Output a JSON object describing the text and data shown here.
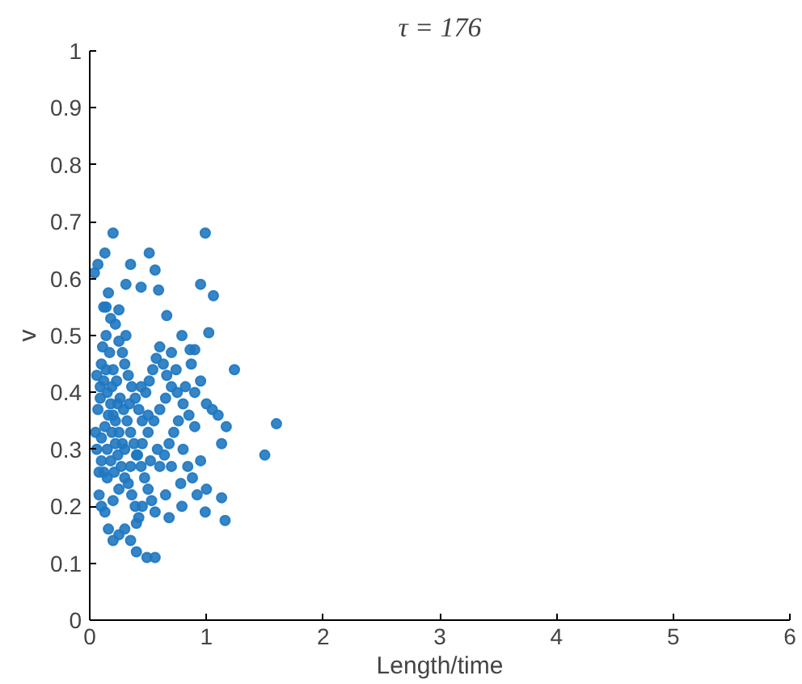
{
  "chart_data": {
    "type": "scatter",
    "title": "τ = 176",
    "xlabel": "Length/time",
    "ylabel": "v",
    "xlim": [
      0,
      6
    ],
    "ylim": [
      0,
      1
    ],
    "xticks": [
      0,
      1,
      2,
      3,
      4,
      5,
      6
    ],
    "yticks": [
      0,
      0.1,
      0.2,
      0.3,
      0.4,
      0.5,
      0.6,
      0.7,
      0.8,
      0.9,
      1
    ],
    "grid": false,
    "marker": "circle",
    "series": [
      {
        "color": "#1f78c1",
        "x": [
          0.2,
          0.99,
          0.13,
          0.51,
          0.04,
          0.07,
          0.35,
          0.56,
          0.95,
          0.31,
          1.06,
          0.16,
          0.44,
          0.59,
          0.14,
          0.25,
          0.66,
          1.02,
          0.79,
          1.24,
          0.9,
          0.86,
          1.17,
          1.6,
          1.5,
          1.13,
          1.13,
          1.16,
          1.0,
          0.99,
          0.79,
          0.68,
          0.49,
          0.56,
          0.4,
          0.16,
          0.1,
          0.12,
          0.15,
          0.18,
          0.2,
          0.22,
          0.25,
          0.28,
          0.3,
          0.1,
          0.12,
          0.15,
          0.08,
          0.1,
          0.13,
          0.2,
          0.25,
          0.3,
          0.35,
          0.4,
          0.45,
          0.5,
          0.55,
          0.6,
          0.65,
          0.7,
          0.75,
          0.8,
          0.85,
          0.9,
          0.95,
          1.0,
          0.05,
          0.07,
          0.09,
          0.11,
          0.14,
          0.17,
          0.2,
          0.23,
          0.26,
          0.29,
          0.32,
          0.35,
          0.38,
          0.41,
          0.44,
          0.47,
          0.5,
          0.53,
          0.56,
          0.6,
          0.64,
          0.68,
          0.72,
          0.76,
          0.8,
          0.84,
          0.88,
          0.92,
          0.3,
          0.33,
          0.36,
          0.39,
          0.42,
          0.45,
          0.48,
          0.51,
          0.54,
          0.57,
          0.6,
          0.63,
          0.66,
          0.25,
          0.28,
          0.31,
          0.22,
          0.18,
          0.12,
          0.15,
          0.18,
          0.21,
          0.24,
          0.27,
          0.33,
          0.36,
          0.39,
          0.42,
          0.3,
          0.25,
          0.2,
          0.35,
          0.4,
          0.45,
          0.1,
          0.13,
          0.16,
          0.19,
          0.22,
          0.06,
          0.08,
          0.06,
          0.09,
          0.14,
          0.19,
          0.24,
          0.34,
          0.44,
          0.5,
          0.7,
          0.78,
          0.65,
          0.58,
          0.52,
          0.74,
          0.82,
          0.9,
          1.05,
          1.1,
          0.95,
          0.87,
          0.7
        ],
        "values": [
          0.68,
          0.68,
          0.645,
          0.645,
          0.61,
          0.625,
          0.625,
          0.615,
          0.59,
          0.59,
          0.57,
          0.575,
          0.585,
          0.58,
          0.55,
          0.545,
          0.535,
          0.505,
          0.5,
          0.44,
          0.475,
          0.475,
          0.34,
          0.345,
          0.29,
          0.31,
          0.215,
          0.175,
          0.23,
          0.19,
          0.2,
          0.18,
          0.11,
          0.11,
          0.12,
          0.16,
          0.45,
          0.42,
          0.4,
          0.38,
          0.36,
          0.35,
          0.33,
          0.31,
          0.3,
          0.28,
          0.26,
          0.25,
          0.22,
          0.2,
          0.19,
          0.21,
          0.23,
          0.25,
          0.27,
          0.29,
          0.31,
          0.33,
          0.35,
          0.37,
          0.39,
          0.41,
          0.4,
          0.38,
          0.36,
          0.34,
          0.42,
          0.38,
          0.33,
          0.37,
          0.41,
          0.48,
          0.5,
          0.47,
          0.44,
          0.42,
          0.39,
          0.37,
          0.35,
          0.33,
          0.31,
          0.29,
          0.27,
          0.25,
          0.23,
          0.21,
          0.19,
          0.27,
          0.29,
          0.31,
          0.33,
          0.35,
          0.3,
          0.27,
          0.25,
          0.22,
          0.45,
          0.43,
          0.41,
          0.39,
          0.37,
          0.35,
          0.4,
          0.42,
          0.44,
          0.46,
          0.48,
          0.45,
          0.43,
          0.49,
          0.47,
          0.5,
          0.52,
          0.53,
          0.55,
          0.3,
          0.28,
          0.26,
          0.29,
          0.27,
          0.24,
          0.22,
          0.2,
          0.18,
          0.16,
          0.15,
          0.14,
          0.14,
          0.17,
          0.2,
          0.32,
          0.34,
          0.36,
          0.33,
          0.31,
          0.3,
          0.26,
          0.43,
          0.39,
          0.44,
          0.41,
          0.38,
          0.38,
          0.41,
          0.36,
          0.27,
          0.24,
          0.22,
          0.3,
          0.28,
          0.44,
          0.41,
          0.4,
          0.37,
          0.36,
          0.28,
          0.45,
          0.47
        ]
      }
    ]
  }
}
